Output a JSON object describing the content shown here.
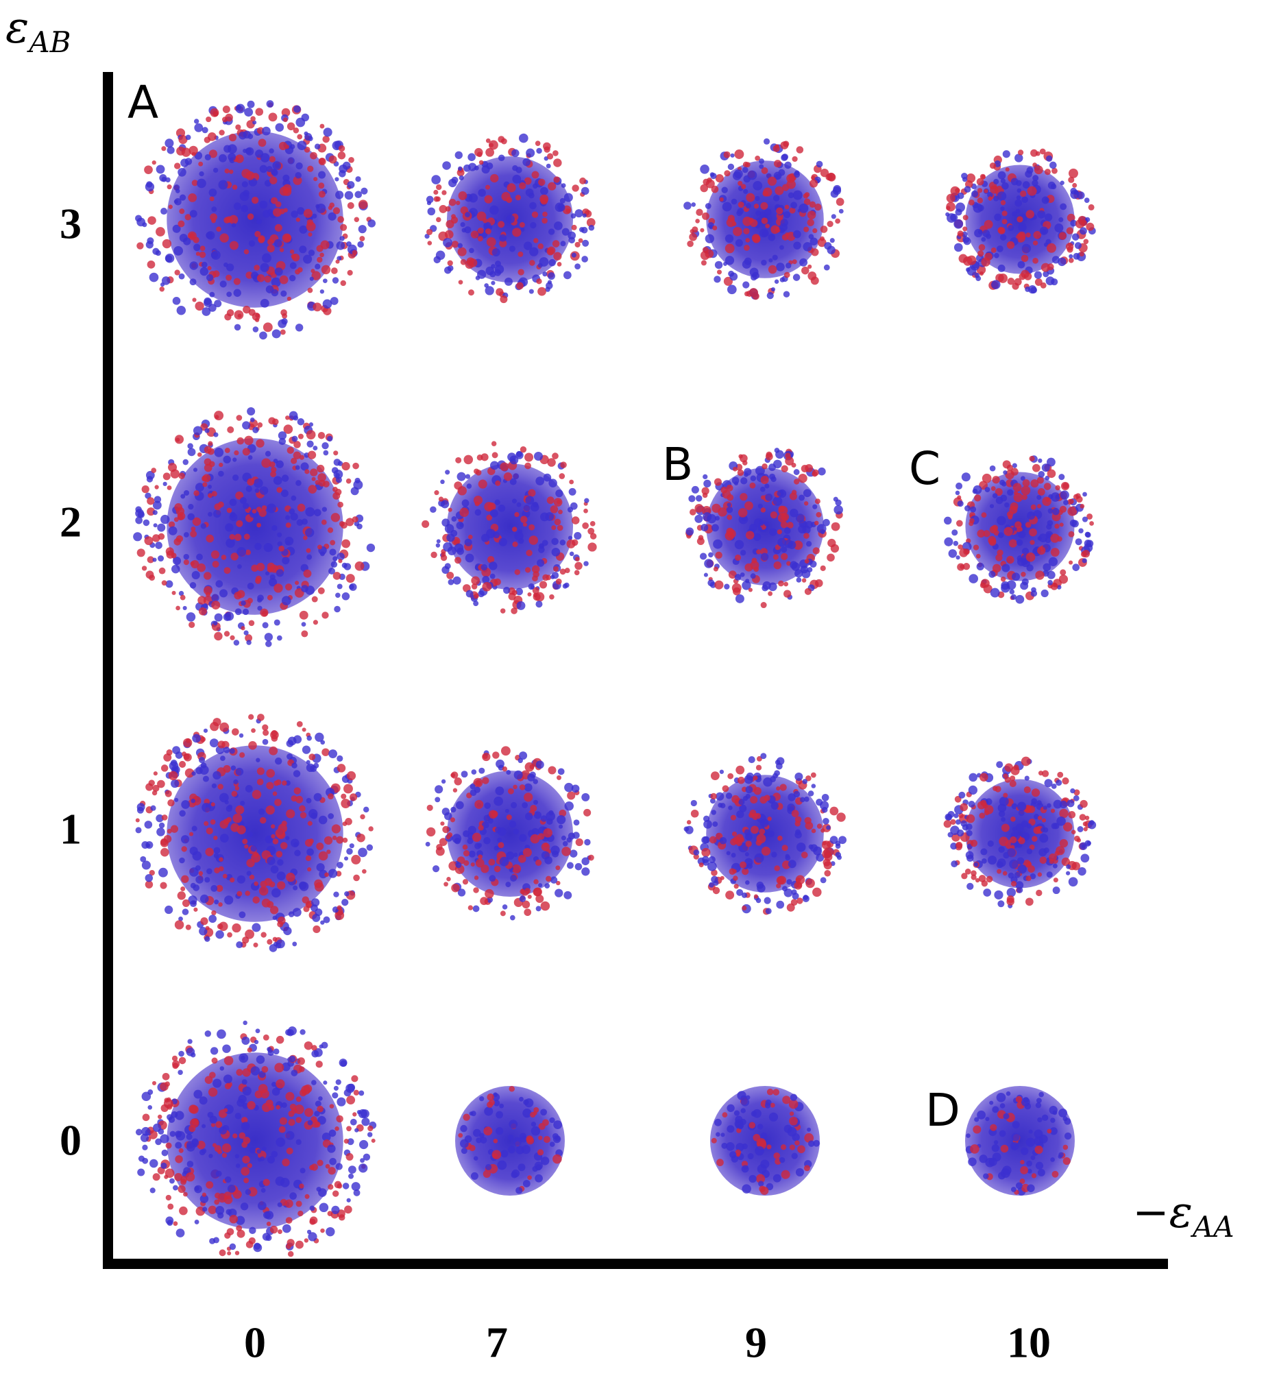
{
  "y_axis": {
    "symbol": "ε",
    "subscript": "AB",
    "ticks": [
      "3",
      "2",
      "1",
      "0"
    ]
  },
  "x_axis": {
    "prefix": "−",
    "symbol": "ε",
    "subscript": "AA",
    "ticks": [
      "0",
      "7",
      "9",
      "10"
    ]
  },
  "panels": [
    "A",
    "B",
    "C",
    "D"
  ]
}
